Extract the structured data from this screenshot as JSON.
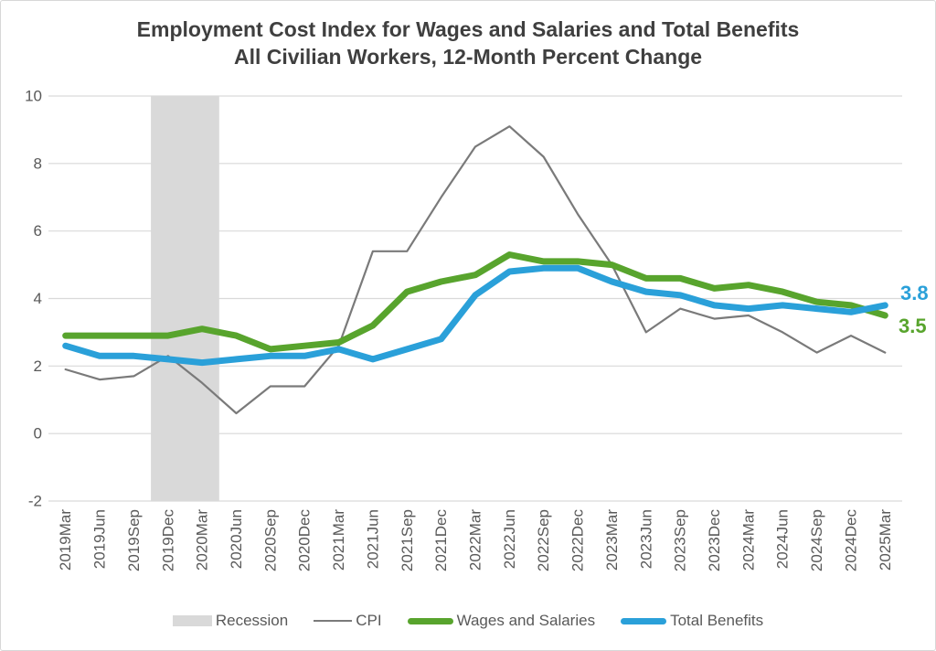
{
  "window": {
    "background": "#ffffff",
    "border_color": "#d7d7d7"
  },
  "text_colors": {
    "title": "#3f3f3f",
    "axis": "#595959"
  },
  "chart_data": {
    "type": "line",
    "title": "Employment Cost Index for Wages and Salaries and Total Benefits",
    "subtitle": "All Civilian Workers, 12-Month Percent Change",
    "y_axis": {
      "min": -2,
      "max": 10,
      "tick_step": 2,
      "ticks": [
        10,
        8,
        6,
        4,
        2,
        0,
        -2
      ],
      "gridlines": "horizontal",
      "gridline_color": "#d9d9d9"
    },
    "x_axis": {
      "label_rotation": 90
    },
    "categories": [
      "2019Mar",
      "2019Jun",
      "2019Sep",
      "2019Dec",
      "2020Mar",
      "2020Jun",
      "2020Sep",
      "2020Dec",
      "2021Mar",
      "2021Jun",
      "2021Sep",
      "2021Dec",
      "2022Mar",
      "2022Jun",
      "2022Sep",
      "2022Dec",
      "2023Mar",
      "2023Jun",
      "2023Sep",
      "2023Dec",
      "2024Mar",
      "2024Jun",
      "2024Sep",
      "2024Dec",
      "2025Mar"
    ],
    "recession_band": {
      "label": "Recession",
      "color": "#d9d9d9",
      "from_category": "2019Dec",
      "to_category": "2020Mar"
    },
    "series": [
      {
        "name": "CPI",
        "color": "#7a7a7a",
        "stroke_width": 2.2,
        "values": [
          1.9,
          1.6,
          1.7,
          2.3,
          1.5,
          0.6,
          1.4,
          1.4,
          2.6,
          5.4,
          5.4,
          7.0,
          8.5,
          9.1,
          8.2,
          6.5,
          5.0,
          3.0,
          3.7,
          3.4,
          3.5,
          3.0,
          2.4,
          2.9,
          2.4
        ]
      },
      {
        "name": "Wages and Salaries",
        "color": "#58a42d",
        "stroke_width": 7,
        "values": [
          2.9,
          2.9,
          2.9,
          2.9,
          3.1,
          2.9,
          2.5,
          2.6,
          2.7,
          3.2,
          4.2,
          4.5,
          4.7,
          5.3,
          5.1,
          5.1,
          5.0,
          4.6,
          4.6,
          4.3,
          4.4,
          4.2,
          3.9,
          3.8,
          3.5
        ]
      },
      {
        "name": "Total Benefits",
        "color": "#2aa0d9",
        "stroke_width": 7,
        "values": [
          2.6,
          2.3,
          2.3,
          2.2,
          2.1,
          2.2,
          2.3,
          2.3,
          2.5,
          2.2,
          2.5,
          2.8,
          4.1,
          4.8,
          4.9,
          4.9,
          4.5,
          4.2,
          4.1,
          3.8,
          3.7,
          3.8,
          3.7,
          3.6,
          3.8
        ]
      }
    ],
    "end_labels": [
      {
        "text": "3.8",
        "series": "Total Benefits",
        "color": "#2aa0d9"
      },
      {
        "text": "3.5",
        "series": "Wages and Salaries",
        "color": "#58a42d"
      }
    ],
    "legend": {
      "position": "bottom",
      "items": [
        {
          "label": "Recession",
          "swatch": "band",
          "color": "#d9d9d9"
        },
        {
          "label": "CPI",
          "swatch": "thin-line",
          "color": "#7a7a7a"
        },
        {
          "label": "Wages and Salaries",
          "swatch": "thick-line",
          "color": "#58a42d"
        },
        {
          "label": "Total Benefits",
          "swatch": "thick-line",
          "color": "#2aa0d9"
        }
      ]
    }
  }
}
